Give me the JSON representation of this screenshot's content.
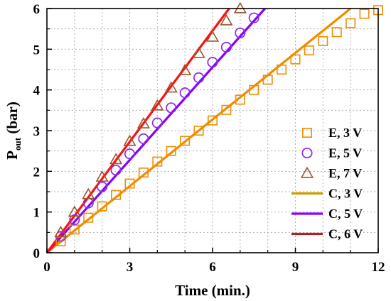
{
  "chart_data": {
    "type": "line",
    "title": "",
    "xlabel": "Time (min.)",
    "ylabel": {
      "main": "P",
      "sub": "out",
      "unit": " (bar)"
    },
    "xlim": [
      0,
      12
    ],
    "ylim": [
      0,
      6
    ],
    "xticks": [
      0,
      3,
      6,
      9,
      12
    ],
    "yticks": [
      0,
      1,
      2,
      3,
      4,
      5,
      6
    ],
    "grid": true,
    "legend_position": "bottom-right",
    "series": [
      {
        "name": "E, 3 V",
        "kind": "markers",
        "marker": "square",
        "color": "#f08c00",
        "x": [
          0.5,
          1.0,
          1.5,
          2.0,
          2.5,
          3.0,
          3.5,
          4.0,
          4.5,
          5.0,
          5.5,
          6.0,
          6.5,
          7.0,
          7.5,
          8.0,
          8.5,
          9.0,
          9.5,
          10.0,
          10.5,
          11.0,
          11.5,
          12.0
        ],
        "y": [
          0.28,
          0.57,
          0.86,
          1.14,
          1.42,
          1.7,
          1.97,
          2.24,
          2.5,
          2.75,
          3.0,
          3.25,
          3.51,
          3.76,
          4.0,
          4.25,
          4.5,
          4.75,
          4.97,
          5.2,
          5.42,
          5.64,
          5.87,
          5.96
        ]
      },
      {
        "name": "E, 5 V",
        "kind": "markers",
        "marker": "circle",
        "color": "#8a2be2",
        "x": [
          0.5,
          1.0,
          1.5,
          2.0,
          2.5,
          3.0,
          3.5,
          4.0,
          4.5,
          5.0,
          5.5,
          6.0,
          6.5,
          7.0,
          7.5
        ],
        "y": [
          0.4,
          0.81,
          1.22,
          1.62,
          2.03,
          2.43,
          2.8,
          3.19,
          3.56,
          3.93,
          4.3,
          4.68,
          5.05,
          5.4,
          5.77
        ]
      },
      {
        "name": "E, 7 V",
        "kind": "markers",
        "marker": "triangle",
        "color": "#a0522d",
        "x": [
          0.5,
          1.0,
          1.5,
          2.0,
          2.5,
          3.0,
          3.5,
          4.0,
          4.5,
          5.0,
          5.5,
          6.0,
          6.5,
          7.0
        ],
        "y": [
          0.5,
          1.0,
          1.43,
          1.86,
          2.29,
          2.74,
          3.17,
          3.61,
          4.05,
          4.48,
          4.9,
          5.3,
          5.7,
          6.0
        ]
      },
      {
        "name": "C, 3 V",
        "kind": "line",
        "color": "#f08c00",
        "x": [
          0,
          11.0
        ],
        "y": [
          0,
          6.0
        ]
      },
      {
        "name": "C, 5 V",
        "kind": "line",
        "color": "#8a00ff",
        "x": [
          0,
          7.9
        ],
        "y": [
          0,
          6.0
        ]
      },
      {
        "name": "C, 6 V",
        "kind": "line",
        "color": "#ff1010",
        "x": [
          0,
          6.6
        ],
        "y": [
          0,
          6.0
        ]
      }
    ],
    "legend": [
      {
        "label": "E, 3 V",
        "marker": "square",
        "color": "#f08c00"
      },
      {
        "label": "E, 5 V",
        "marker": "circle",
        "color": "#8a2be2"
      },
      {
        "label": "E, 7 V",
        "marker": "triangle",
        "color": "#a0522d"
      },
      {
        "label": "C, 3 V",
        "marker": "line",
        "color": "#c8a000"
      },
      {
        "label": "C, 5 V",
        "marker": "line",
        "color": "#8a00ff"
      },
      {
        "label": "C, 6 V",
        "marker": "line",
        "color": "#b22222"
      }
    ]
  }
}
